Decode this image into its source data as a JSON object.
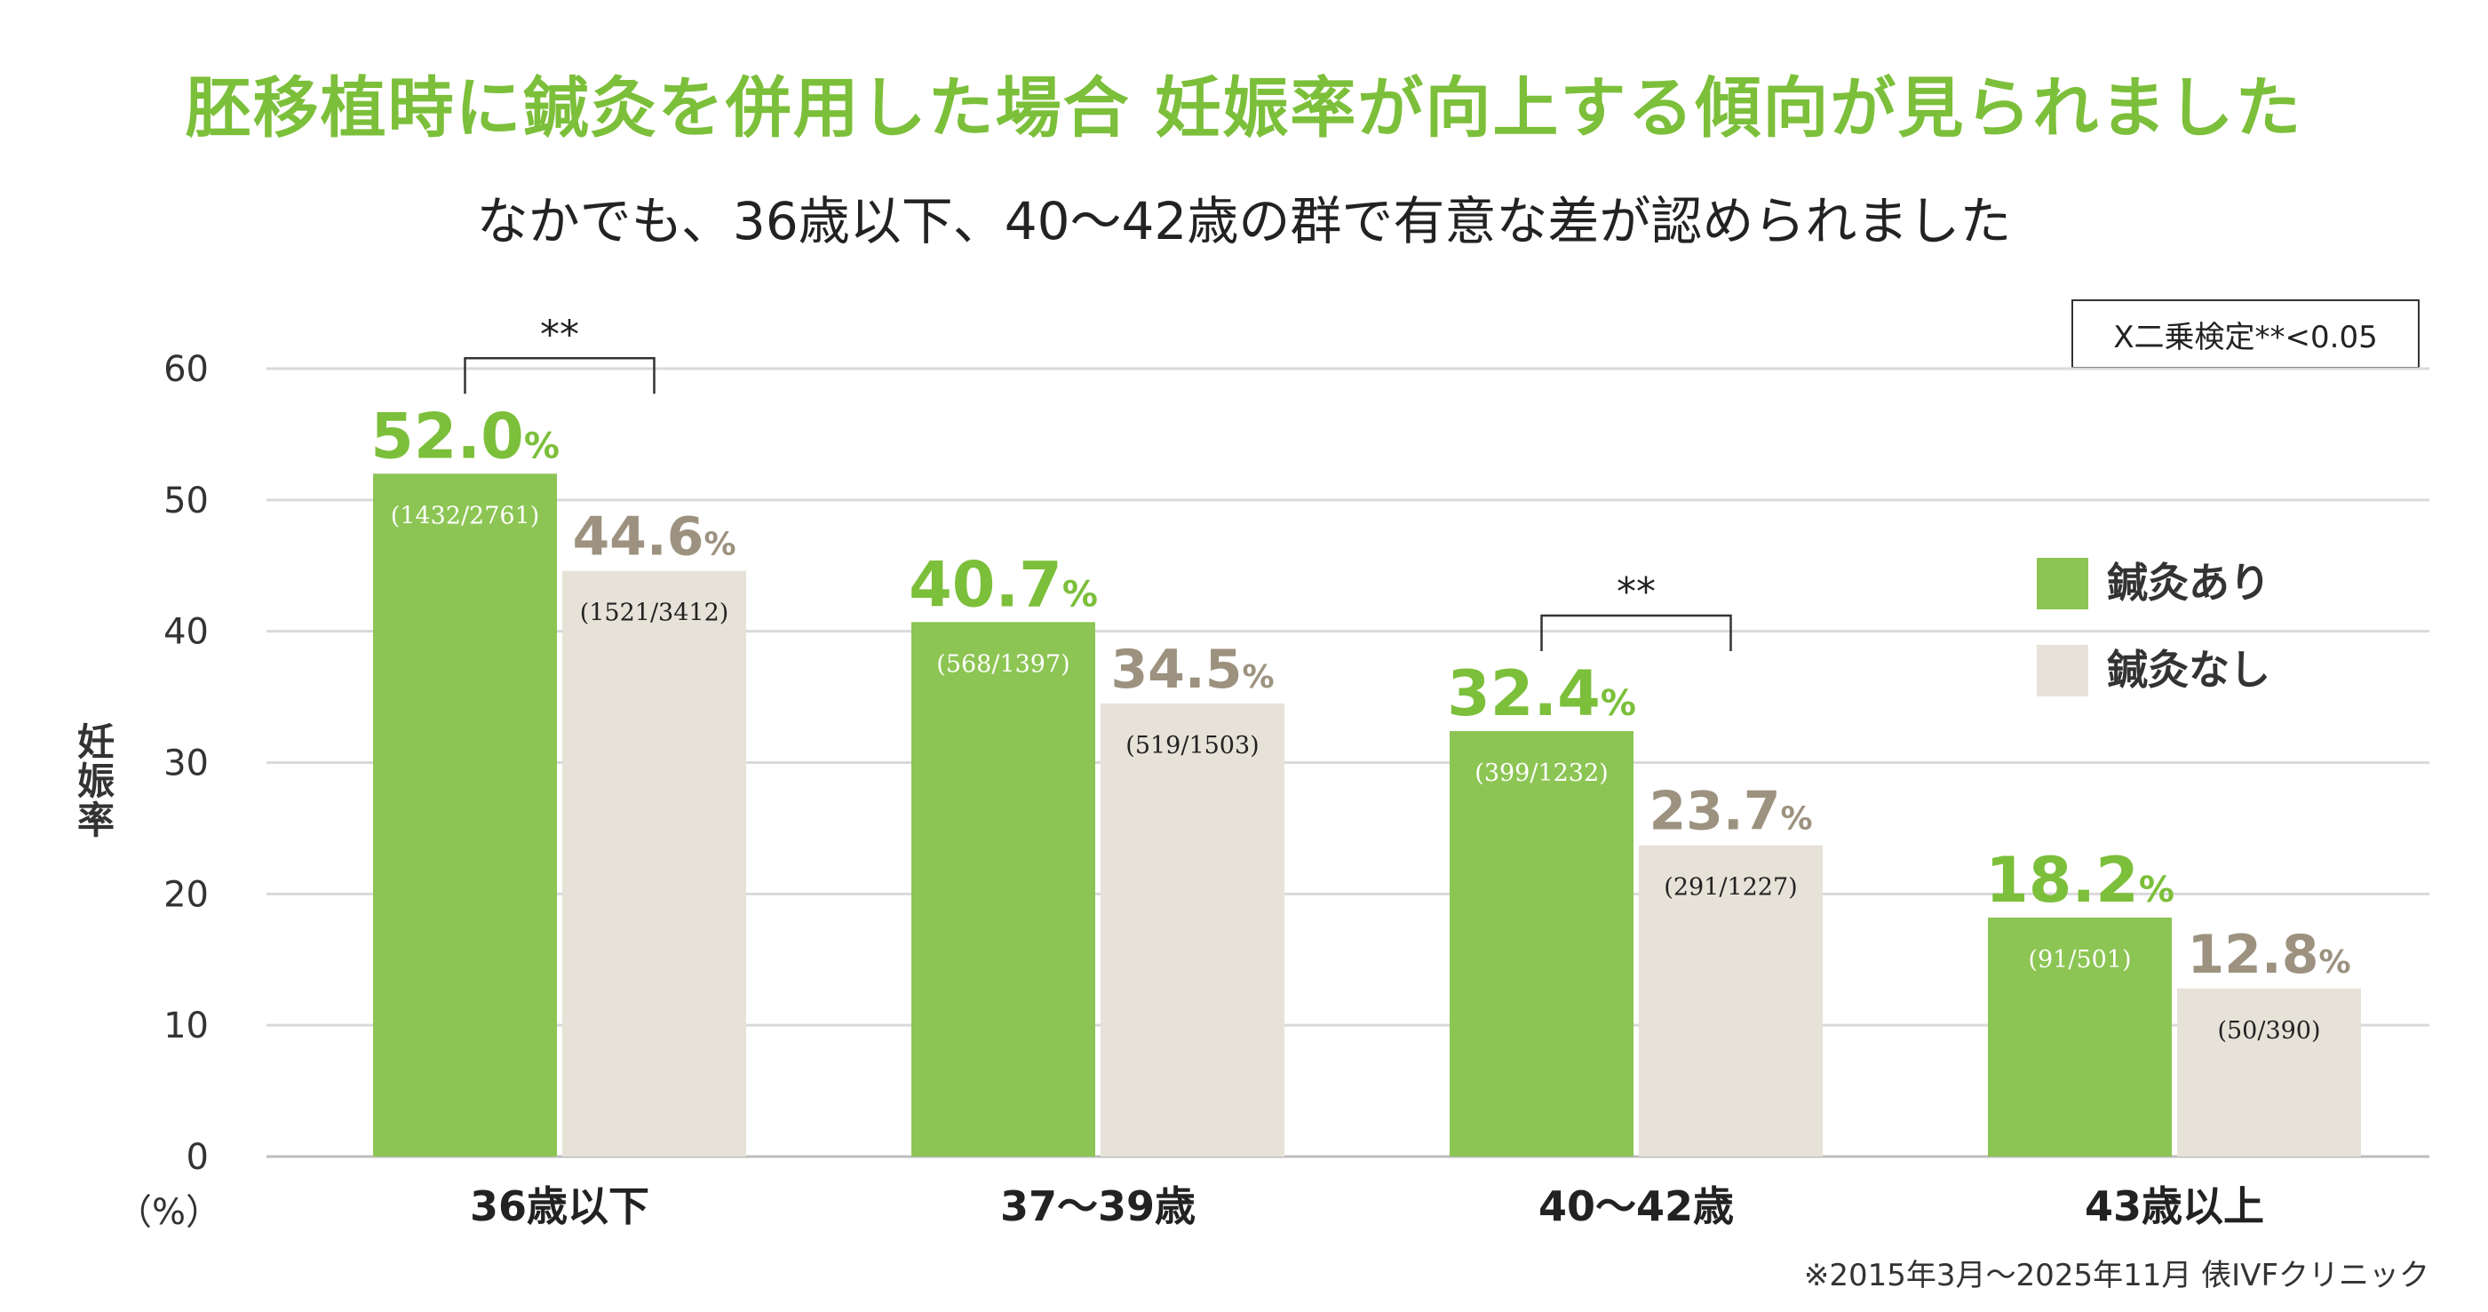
{
  "title": "胚移植時に鍼灸を併用した場合 妊娠率が向上する傾向が見られました",
  "subtitle": "なかでも、36歳以下、40〜42歳の群で有意な差が認められました",
  "note": "X二乗検定**<0.05",
  "footnote": "※2015年3月〜2025年11月 俵IVFクリニック",
  "colors": {
    "accent": "#8cc553",
    "control": "#e6e2d8",
    "accent_label": "#7cbf3a",
    "control_label": "#9c927f"
  },
  "chart_data": {
    "type": "bar",
    "ylabel": "妊娠率",
    "yunit": "（%）",
    "ylim": [
      0,
      60
    ],
    "yticks": [
      0,
      10,
      20,
      30,
      40,
      50,
      60
    ],
    "grid": true,
    "legend_position": "right",
    "categories": [
      "36歳以下",
      "37〜39歳",
      "40〜42歳",
      "43歳以上"
    ],
    "series": [
      {
        "name": "鍼灸あり",
        "values": [
          52.0,
          40.7,
          32.4,
          18.2
        ],
        "labels": [
          "52.0",
          "40.7",
          "32.4",
          "18.2"
        ],
        "counts": [
          "(1432/2761)",
          "(568/1397)",
          "(399/1232)",
          "(91/501)"
        ]
      },
      {
        "name": "鍼灸なし",
        "values": [
          44.6,
          34.5,
          23.7,
          12.8
        ],
        "labels": [
          "44.6",
          "34.5",
          "23.7",
          "12.8"
        ],
        "counts": [
          "(1521/3412)",
          "(519/1503)",
          "(291/1227)",
          "(50/390)"
        ]
      }
    ],
    "value_unit": "%",
    "significance": [
      {
        "category_index": 0,
        "label": "**"
      },
      {
        "category_index": 2,
        "label": "**"
      }
    ]
  }
}
